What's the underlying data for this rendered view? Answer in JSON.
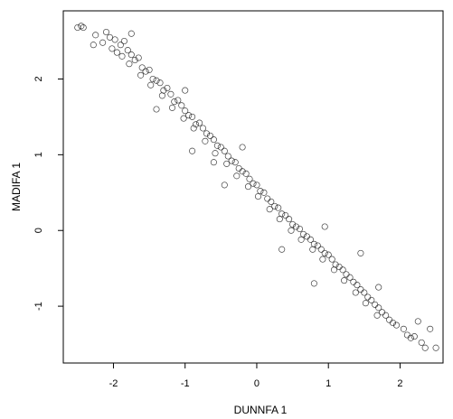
{
  "chart_data": {
    "type": "scatter",
    "xlabel": "DUNNFA 1",
    "ylabel": "MADIFA 1",
    "xlim": [
      -2.7,
      2.6
    ],
    "ylim": [
      -1.75,
      2.9
    ],
    "x_ticks": [
      -2,
      -1,
      0,
      1,
      2
    ],
    "y_ticks": [
      -1,
      0,
      1,
      2
    ],
    "grid": false,
    "legend": "none",
    "marker": "open-circle",
    "series": [
      {
        "values_description_note": "",
        "points": [
          [
            -2.45,
            2.7
          ],
          [
            -2.42,
            2.68
          ],
          [
            -2.5,
            2.68
          ],
          [
            -2.25,
            2.58
          ],
          [
            -2.28,
            2.45
          ],
          [
            -2.1,
            2.62
          ],
          [
            -2.05,
            2.55
          ],
          [
            -2.15,
            2.48
          ],
          [
            -1.98,
            2.52
          ],
          [
            -2.02,
            2.4
          ],
          [
            -1.95,
            2.35
          ],
          [
            -1.9,
            2.45
          ],
          [
            -1.85,
            2.5
          ],
          [
            -1.8,
            2.38
          ],
          [
            -1.88,
            2.3
          ],
          [
            -1.75,
            2.32
          ],
          [
            -1.7,
            2.25
          ],
          [
            -1.78,
            2.2
          ],
          [
            -1.65,
            2.28
          ],
          [
            -1.6,
            2.15
          ],
          [
            -1.55,
            2.1
          ],
          [
            -1.62,
            2.05
          ],
          [
            -1.5,
            2.12
          ],
          [
            -1.45,
            2.0
          ],
          [
            -1.4,
            1.98
          ],
          [
            -1.48,
            1.92
          ],
          [
            -1.35,
            1.95
          ],
          [
            -1.3,
            1.85
          ],
          [
            -1.25,
            1.88
          ],
          [
            -1.32,
            1.78
          ],
          [
            -1.2,
            1.8
          ],
          [
            -1.15,
            1.7
          ],
          [
            -1.1,
            1.72
          ],
          [
            -1.18,
            1.62
          ],
          [
            -1.05,
            1.65
          ],
          [
            -1.0,
            1.58
          ],
          [
            -0.95,
            1.52
          ],
          [
            -1.02,
            1.48
          ],
          [
            -0.9,
            1.5
          ],
          [
            -0.85,
            1.4
          ],
          [
            -0.8,
            1.42
          ],
          [
            -0.88,
            1.35
          ],
          [
            -0.75,
            1.35
          ],
          [
            -0.7,
            1.28
          ],
          [
            -0.65,
            1.25
          ],
          [
            -0.72,
            1.18
          ],
          [
            -0.6,
            1.2
          ],
          [
            -0.55,
            1.12
          ],
          [
            -0.5,
            1.1
          ],
          [
            -0.58,
            1.02
          ],
          [
            -0.45,
            1.05
          ],
          [
            -0.4,
            0.98
          ],
          [
            -0.35,
            0.92
          ],
          [
            -0.42,
            0.88
          ],
          [
            -0.3,
            0.9
          ],
          [
            -0.25,
            0.82
          ],
          [
            -0.2,
            0.78
          ],
          [
            -0.28,
            0.72
          ],
          [
            -0.15,
            0.75
          ],
          [
            -0.1,
            0.68
          ],
          [
            -0.05,
            0.62
          ],
          [
            -0.12,
            0.58
          ],
          [
            0.0,
            0.6
          ],
          [
            0.05,
            0.52
          ],
          [
            0.1,
            0.5
          ],
          [
            0.02,
            0.45
          ],
          [
            0.15,
            0.42
          ],
          [
            0.2,
            0.38
          ],
          [
            0.25,
            0.32
          ],
          [
            0.18,
            0.28
          ],
          [
            0.3,
            0.3
          ],
          [
            0.35,
            0.22
          ],
          [
            0.4,
            0.2
          ],
          [
            0.32,
            0.15
          ],
          [
            0.45,
            0.15
          ],
          [
            0.5,
            0.08
          ],
          [
            0.55,
            0.05
          ],
          [
            0.48,
            0.0
          ],
          [
            0.6,
            0.02
          ],
          [
            0.65,
            -0.05
          ],
          [
            0.7,
            -0.08
          ],
          [
            0.62,
            -0.12
          ],
          [
            0.75,
            -0.12
          ],
          [
            0.8,
            -0.18
          ],
          [
            0.85,
            -0.2
          ],
          [
            0.78,
            -0.25
          ],
          [
            0.9,
            -0.25
          ],
          [
            0.95,
            -0.3
          ],
          [
            1.0,
            -0.32
          ],
          [
            0.92,
            -0.38
          ],
          [
            1.05,
            -0.38
          ],
          [
            1.1,
            -0.45
          ],
          [
            1.15,
            -0.48
          ],
          [
            1.08,
            -0.52
          ],
          [
            1.2,
            -0.52
          ],
          [
            1.25,
            -0.58
          ],
          [
            1.3,
            -0.62
          ],
          [
            1.22,
            -0.66
          ],
          [
            1.35,
            -0.68
          ],
          [
            1.4,
            -0.72
          ],
          [
            1.45,
            -0.78
          ],
          [
            1.38,
            -0.82
          ],
          [
            1.5,
            -0.82
          ],
          [
            1.55,
            -0.88
          ],
          [
            1.6,
            -0.92
          ],
          [
            1.52,
            -0.96
          ],
          [
            1.65,
            -0.98
          ],
          [
            1.7,
            -1.02
          ],
          [
            1.75,
            -1.08
          ],
          [
            1.68,
            -1.12
          ],
          [
            1.8,
            -1.12
          ],
          [
            1.85,
            -1.18
          ],
          [
            1.9,
            -1.22
          ],
          [
            1.95,
            -1.25
          ],
          [
            2.05,
            -1.3
          ],
          [
            2.1,
            -1.38
          ],
          [
            2.15,
            -1.42
          ],
          [
            2.2,
            -1.4
          ],
          [
            2.3,
            -1.48
          ],
          [
            2.35,
            -1.55
          ],
          [
            2.5,
            -1.55
          ],
          [
            2.42,
            -1.3
          ],
          [
            2.25,
            -1.2
          ],
          [
            1.45,
            -0.3
          ],
          [
            0.8,
            -0.7
          ],
          [
            -0.6,
            0.9
          ],
          [
            -0.2,
            1.1
          ],
          [
            0.35,
            -0.25
          ],
          [
            -1.0,
            1.85
          ],
          [
            -1.4,
            1.6
          ],
          [
            -0.45,
            0.6
          ],
          [
            0.95,
            0.05
          ],
          [
            1.7,
            -0.75
          ],
          [
            -1.75,
            2.6
          ],
          [
            -0.9,
            1.05
          ]
        ]
      }
    ]
  }
}
